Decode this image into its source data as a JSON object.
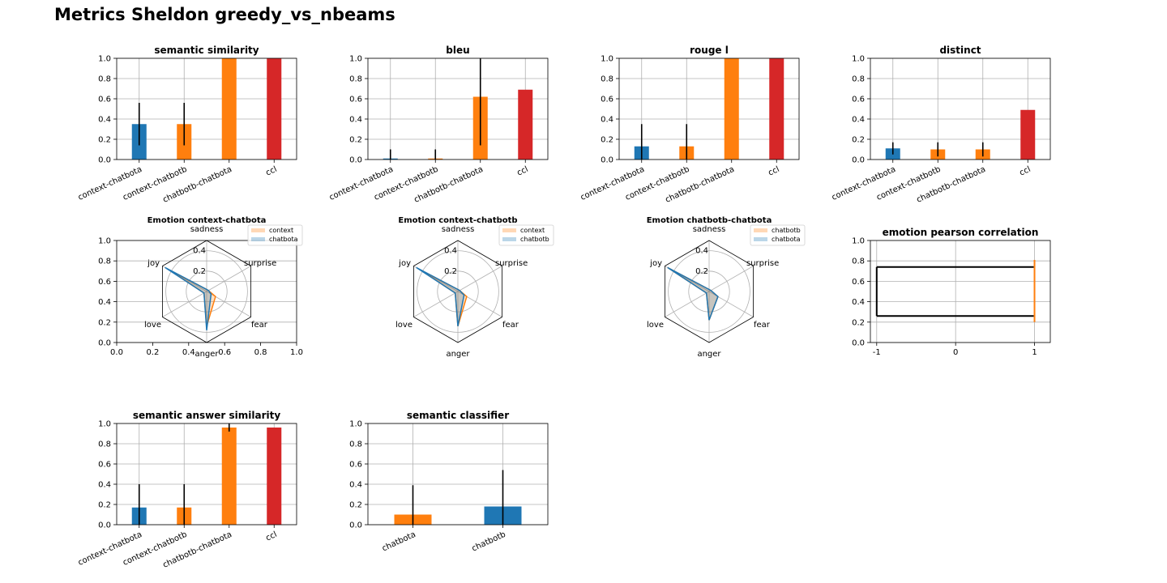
{
  "figure": {
    "title": "Metrics Sheldon greedy_vs_nbeams",
    "colors": {
      "blue": "#1f77b4",
      "orange": "#ff7f0e",
      "red": "#d62728",
      "black": "#000000",
      "grid": "#b0b0b0"
    },
    "y_ticks": [
      "0.0",
      "0.2",
      "0.4",
      "0.6",
      "0.8",
      "1.0"
    ]
  },
  "chart_data": [
    {
      "type": "bar",
      "title": "semantic similarity",
      "categories": [
        "context-chatbota",
        "context-chatbotb",
        "chatbotb-chatbota",
        "ccl"
      ],
      "values": [
        0.35,
        0.35,
        1.0,
        1.0
      ],
      "errors": [
        0.21,
        0.21,
        0.0,
        0.0
      ],
      "colors": [
        "#1f77b4",
        "#ff7f0e",
        "#ff7f0e",
        "#d62728"
      ],
      "ylim": [
        0,
        1
      ]
    },
    {
      "type": "bar",
      "title": "bleu",
      "categories": [
        "context-chatbota",
        "context-chatbotb",
        "chatbotb-chatbota",
        "ccl"
      ],
      "values": [
        0.01,
        0.01,
        0.62,
        0.69
      ],
      "errors": [
        0.09,
        0.09,
        0.48,
        0.0
      ],
      "colors": [
        "#1f77b4",
        "#ff7f0e",
        "#ff7f0e",
        "#d62728"
      ],
      "ylim": [
        0,
        1
      ]
    },
    {
      "type": "bar",
      "title": "rouge l",
      "categories": [
        "context-chatbota",
        "context-chatbotb",
        "chatbotb-chatbota",
        "ccl"
      ],
      "values": [
        0.13,
        0.13,
        1.0,
        1.0
      ],
      "errors": [
        0.22,
        0.22,
        0.0,
        0.0
      ],
      "colors": [
        "#1f77b4",
        "#ff7f0e",
        "#ff7f0e",
        "#d62728"
      ],
      "ylim": [
        0,
        1
      ]
    },
    {
      "type": "bar",
      "title": "distinct",
      "categories": [
        "context-chatbota",
        "context-chatbotb",
        "chatbotb-chatbota",
        "ccl"
      ],
      "values": [
        0.11,
        0.1,
        0.1,
        0.49
      ],
      "errors": [
        0.06,
        0.07,
        0.07,
        0.0
      ],
      "colors": [
        "#1f77b4",
        "#ff7f0e",
        "#ff7f0e",
        "#d62728"
      ],
      "ylim": [
        0,
        1
      ]
    },
    {
      "type": "radar",
      "title": "Emotion context-chatbota",
      "axes": [
        "sadness",
        "surprise",
        "fear",
        "anger",
        "love",
        "joy"
      ],
      "radial_ticks": [
        "0.2",
        "0.4"
      ],
      "rmax": 0.5,
      "series": [
        {
          "name": "context",
          "values": [
            0.02,
            0.02,
            0.1,
            0.34,
            0.03,
            0.42
          ]
        },
        {
          "name": "chatbota",
          "values": [
            0.02,
            0.02,
            0.05,
            0.38,
            0.03,
            0.47
          ]
        }
      ],
      "x_ticks": [
        "0.0",
        "0.2",
        "0.4",
        "0.6",
        "0.8",
        "1.0"
      ],
      "y_ticks": [
        "0.0",
        "0.2",
        "0.4",
        "0.6",
        "0.8",
        "1.0"
      ]
    },
    {
      "type": "radar",
      "title": "Emotion context-chatbotb",
      "axes": [
        "sadness",
        "surprise",
        "fear",
        "anger",
        "love",
        "joy"
      ],
      "radial_ticks": [
        "0.2",
        "0.4"
      ],
      "rmax": 0.5,
      "series": [
        {
          "name": "context",
          "values": [
            0.02,
            0.02,
            0.1,
            0.34,
            0.03,
            0.42
          ]
        },
        {
          "name": "chatbotb",
          "values": [
            0.02,
            0.02,
            0.07,
            0.34,
            0.03,
            0.47
          ]
        }
      ]
    },
    {
      "type": "radar",
      "title": "Emotion chatbotb-chatbota",
      "axes": [
        "sadness",
        "surprise",
        "fear",
        "anger",
        "love",
        "joy"
      ],
      "radial_ticks": [
        "0.2",
        "0.4"
      ],
      "rmax": 0.5,
      "series": [
        {
          "name": "chatbotb",
          "values": [
            0.02,
            0.02,
            0.1,
            0.28,
            0.03,
            0.47
          ]
        },
        {
          "name": "chatbota",
          "values": [
            0.02,
            0.02,
            0.1,
            0.28,
            0.03,
            0.47
          ]
        }
      ]
    },
    {
      "type": "line",
      "title": "emotion pearson correlation",
      "x_ticks": [
        "-1",
        "0",
        "1"
      ],
      "xlim": [
        -1.08,
        1.2
      ],
      "ylim": [
        0,
        1
      ],
      "segments": [
        {
          "x": [
            -1,
            0.99
          ],
          "y": [
            0.26,
            0.26
          ],
          "color": "#000000"
        },
        {
          "x": [
            -1,
            0.99
          ],
          "y": [
            0.74,
            0.74
          ],
          "color": "#000000"
        },
        {
          "x": [
            -1,
            -1
          ],
          "y": [
            0.26,
            0.74
          ],
          "color": "#000000"
        },
        {
          "x": [
            1,
            1
          ],
          "y": [
            0.2,
            0.81
          ],
          "color": "#ff7f0e"
        }
      ]
    },
    {
      "type": "bar",
      "title": "semantic answer similarity",
      "categories": [
        "context-chatbota",
        "context-chatbotb",
        "chatbotb-chatbota",
        "ccl"
      ],
      "values": [
        0.17,
        0.17,
        0.96,
        0.96
      ],
      "errors": [
        0.23,
        0.23,
        0.04,
        0.0
      ],
      "colors": [
        "#1f77b4",
        "#ff7f0e",
        "#ff7f0e",
        "#d62728"
      ],
      "ylim": [
        0,
        1
      ]
    },
    {
      "type": "bar",
      "title": "semantic classifier",
      "categories": [
        "chatbota",
        "chatbotb"
      ],
      "values": [
        0.1,
        0.18
      ],
      "errors": [
        0.29,
        0.36
      ],
      "colors": [
        "#ff7f0e",
        "#1f77b4"
      ],
      "ylim": [
        0,
        1
      ]
    }
  ]
}
